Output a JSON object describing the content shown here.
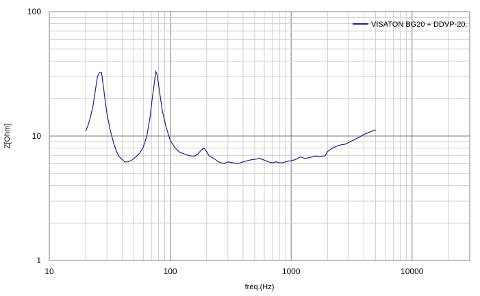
{
  "chart_data": {
    "type": "line",
    "xlabel": "freq.(Hz)",
    "ylabel": "Z[Ohm]",
    "x_scale": "log",
    "y_scale": "log",
    "xlim": [
      10,
      30000
    ],
    "ylim": [
      1,
      100
    ],
    "x_ticks": [
      {
        "value": 10,
        "label": "10"
      },
      {
        "value": 100,
        "label": "100"
      },
      {
        "value": 1000,
        "label": "1000"
      },
      {
        "value": 10000,
        "label": "10000"
      }
    ],
    "y_ticks": [
      {
        "value": 1,
        "label": "1"
      },
      {
        "value": 10,
        "label": "10"
      },
      {
        "value": 100,
        "label": "100"
      }
    ],
    "grid": true,
    "legend_position": "top-right",
    "series": [
      {
        "name": "VISATON BG20 + DDVP-20.",
        "color": "#1f1f8c",
        "points": [
          [
            20,
            11.0
          ],
          [
            21,
            12.3
          ],
          [
            22,
            14.5
          ],
          [
            23,
            17.5
          ],
          [
            24,
            23
          ],
          [
            25,
            30
          ],
          [
            26,
            32.5
          ],
          [
            27,
            32.5
          ],
          [
            28,
            25
          ],
          [
            29,
            19
          ],
          [
            30,
            15
          ],
          [
            32,
            11
          ],
          [
            34,
            8.8
          ],
          [
            36,
            7.5
          ],
          [
            38,
            6.8
          ],
          [
            40,
            6.5
          ],
          [
            42,
            6.2
          ],
          [
            45,
            6.2
          ],
          [
            48,
            6.4
          ],
          [
            52,
            6.8
          ],
          [
            56,
            7.3
          ],
          [
            60,
            8.2
          ],
          [
            64,
            10
          ],
          [
            68,
            14
          ],
          [
            71,
            20
          ],
          [
            74,
            27
          ],
          [
            76,
            33
          ],
          [
            78,
            31
          ],
          [
            82,
            22
          ],
          [
            86,
            16
          ],
          [
            92,
            12
          ],
          [
            100,
            9.2
          ],
          [
            110,
            8.0
          ],
          [
            120,
            7.4
          ],
          [
            130,
            7.2
          ],
          [
            140,
            7.0
          ],
          [
            150,
            6.9
          ],
          [
            160,
            6.9
          ],
          [
            170,
            7.2
          ],
          [
            180,
            7.7
          ],
          [
            190,
            8.0
          ],
          [
            200,
            7.5
          ],
          [
            210,
            6.9
          ],
          [
            230,
            6.6
          ],
          [
            250,
            6.2
          ],
          [
            280,
            6.0
          ],
          [
            300,
            6.2
          ],
          [
            330,
            6.1
          ],
          [
            360,
            6.0
          ],
          [
            400,
            6.2
          ],
          [
            450,
            6.4
          ],
          [
            500,
            6.5
          ],
          [
            550,
            6.6
          ],
          [
            600,
            6.4
          ],
          [
            650,
            6.2
          ],
          [
            700,
            6.1
          ],
          [
            750,
            6.2
          ],
          [
            800,
            6.1
          ],
          [
            850,
            6.1
          ],
          [
            900,
            6.2
          ],
          [
            950,
            6.3
          ],
          [
            1000,
            6.3
          ],
          [
            1100,
            6.5
          ],
          [
            1200,
            6.8
          ],
          [
            1300,
            6.6
          ],
          [
            1400,
            6.7
          ],
          [
            1500,
            6.8
          ],
          [
            1600,
            6.9
          ],
          [
            1700,
            6.8
          ],
          [
            1800,
            6.9
          ],
          [
            1900,
            6.9
          ],
          [
            2000,
            7.5
          ],
          [
            2200,
            8.0
          ],
          [
            2400,
            8.3
          ],
          [
            2600,
            8.5
          ],
          [
            2800,
            8.6
          ],
          [
            3000,
            8.9
          ],
          [
            3300,
            9.3
          ],
          [
            3600,
            9.7
          ],
          [
            4000,
            10.3
          ],
          [
            4500,
            10.8
          ],
          [
            5000,
            11.2
          ]
        ]
      }
    ]
  }
}
